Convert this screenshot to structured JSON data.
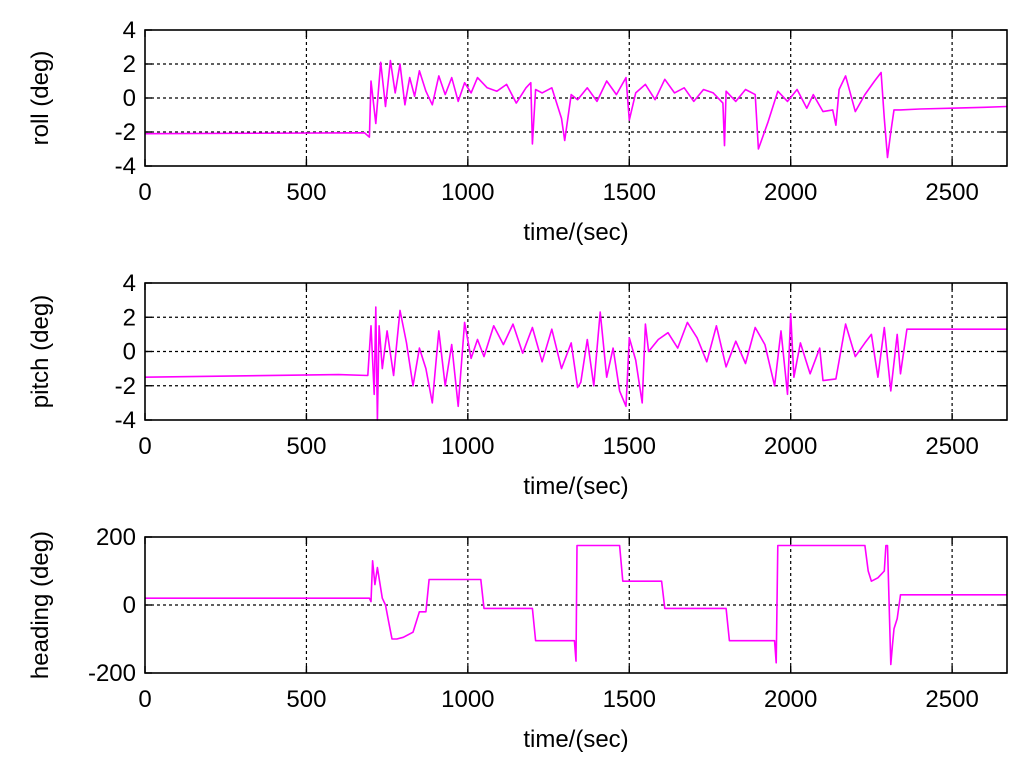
{
  "figure": {
    "background": "#ffffff",
    "trace_color": "#ff00ff"
  },
  "chart_data": [
    {
      "type": "line",
      "xlabel": "time/(sec)",
      "ylabel": "roll (deg)",
      "xlim": [
        0,
        2670
      ],
      "ylim": [
        -4,
        4
      ],
      "xticks": [
        0,
        500,
        1000,
        1500,
        2000,
        2500
      ],
      "yticks": [
        -4,
        -2,
        0,
        2,
        4
      ],
      "grid": true,
      "series": [
        {
          "color": "#ff00ff",
          "x": [
            0,
            680,
            695,
            700,
            715,
            730,
            745,
            760,
            775,
            790,
            805,
            820,
            835,
            850,
            870,
            890,
            910,
            930,
            950,
            970,
            990,
            1010,
            1030,
            1060,
            1090,
            1120,
            1150,
            1180,
            1195,
            1200,
            1210,
            1230,
            1260,
            1290,
            1300,
            1320,
            1340,
            1370,
            1400,
            1430,
            1460,
            1490,
            1500,
            1520,
            1550,
            1580,
            1610,
            1640,
            1670,
            1700,
            1730,
            1760,
            1790,
            1795,
            1800,
            1830,
            1860,
            1890,
            1900,
            1930,
            1960,
            1990,
            2020,
            2050,
            2070,
            2100,
            2130,
            2140,
            2150,
            2170,
            2200,
            2230,
            2260,
            2280,
            2290,
            2300,
            2310,
            2320,
            2340,
            2400,
            2500,
            2600,
            2670
          ],
          "y": [
            -2.1,
            -2.05,
            -2.3,
            1.0,
            -1.5,
            2.1,
            -0.5,
            2.2,
            0.3,
            2.0,
            -0.4,
            1.2,
            0.1,
            1.6,
            0.4,
            -0.4,
            1.3,
            0.2,
            1.2,
            -0.2,
            0.9,
            0.3,
            1.2,
            0.6,
            0.4,
            0.8,
            -0.3,
            0.6,
            0.9,
            -2.7,
            0.5,
            0.3,
            0.6,
            -1.2,
            -2.5,
            0.2,
            -0.1,
            0.6,
            -0.2,
            1.0,
            0.2,
            1.2,
            -1.3,
            0.3,
            0.8,
            -0.1,
            1.1,
            0.3,
            0.6,
            -0.2,
            0.5,
            0.3,
            -0.3,
            -2.8,
            0.4,
            -0.2,
            0.5,
            0.2,
            -3.0,
            -1.4,
            0.4,
            -0.2,
            0.5,
            -0.6,
            0.2,
            -0.8,
            -0.7,
            -1.6,
            0.5,
            1.3,
            -0.8,
            0.2,
            1.0,
            1.5,
            -1.2,
            -3.5,
            -2.0,
            -0.7,
            -0.7,
            -0.65,
            -0.6,
            -0.55,
            -0.5
          ]
        }
      ]
    },
    {
      "type": "line",
      "xlabel": "time/(sec)",
      "ylabel": "pitch (deg)",
      "xlim": [
        0,
        2670
      ],
      "ylim": [
        -4,
        4
      ],
      "xticks": [
        0,
        500,
        1000,
        1500,
        2000,
        2500
      ],
      "yticks": [
        -4,
        -2,
        0,
        2,
        4
      ],
      "grid": true,
      "series": [
        {
          "color": "#ff00ff",
          "x": [
            0,
            600,
            690,
            700,
            710,
            715,
            720,
            725,
            735,
            750,
            770,
            790,
            810,
            830,
            850,
            870,
            890,
            910,
            930,
            950,
            970,
            990,
            1010,
            1030,
            1050,
            1080,
            1110,
            1140,
            1170,
            1200,
            1230,
            1260,
            1290,
            1320,
            1340,
            1350,
            1370,
            1390,
            1410,
            1430,
            1450,
            1470,
            1490,
            1500,
            1520,
            1540,
            1550,
            1560,
            1590,
            1620,
            1650,
            1680,
            1710,
            1740,
            1770,
            1800,
            1830,
            1860,
            1890,
            1920,
            1950,
            1970,
            1990,
            2000,
            2010,
            2030,
            2060,
            2090,
            2100,
            2140,
            2170,
            2200,
            2230,
            2250,
            2270,
            2290,
            2310,
            2330,
            2340,
            2360,
            2670
          ],
          "y": [
            -1.5,
            -1.35,
            -1.4,
            1.5,
            -2.5,
            2.6,
            -4.0,
            1.5,
            -1.0,
            1.2,
            -1.4,
            2.4,
            0.5,
            -2.0,
            0.2,
            -1.0,
            -3.0,
            1.2,
            -2.0,
            0.4,
            -3.2,
            1.7,
            -0.4,
            0.7,
            -0.3,
            1.5,
            0.4,
            1.6,
            -0.1,
            1.4,
            -0.6,
            1.3,
            -1.0,
            0.5,
            -2.1,
            -1.8,
            0.7,
            -2.0,
            2.3,
            -1.5,
            0.2,
            -2.3,
            -3.2,
            0.8,
            -0.5,
            -3.0,
            1.6,
            0.0,
            0.7,
            1.1,
            0.2,
            1.7,
            0.8,
            -0.6,
            1.5,
            -0.9,
            0.6,
            -0.7,
            1.4,
            0.4,
            -2.0,
            1.2,
            -2.5,
            2.2,
            -1.5,
            0.5,
            -1.3,
            0.2,
            -1.7,
            -1.6,
            1.6,
            -0.3,
            0.5,
            1.0,
            -1.5,
            1.4,
            -2.3,
            1.0,
            -1.3,
            1.3,
            1.3
          ]
        }
      ]
    },
    {
      "type": "line",
      "xlabel": "time/(sec)",
      "ylabel": "heading (deg)",
      "xlim": [
        0,
        2670
      ],
      "ylim": [
        -200,
        200
      ],
      "xticks": [
        0,
        500,
        1000,
        1500,
        2000,
        2500
      ],
      "yticks": [
        -200,
        0,
        200
      ],
      "grid": true,
      "series": [
        {
          "color": "#ff00ff",
          "x": [
            0,
            690,
            695,
            700,
            705,
            712,
            720,
            735,
            745,
            755,
            765,
            780,
            800,
            830,
            850,
            870,
            880,
            950,
            1000,
            1040,
            1050,
            1100,
            1150,
            1200,
            1210,
            1250,
            1300,
            1330,
            1335,
            1338,
            1350,
            1400,
            1470,
            1480,
            1550,
            1600,
            1610,
            1700,
            1800,
            1810,
            1900,
            1950,
            1955,
            1960,
            2000,
            2100,
            2230,
            2240,
            2250,
            2270,
            2290,
            2295,
            2300,
            2310,
            2315,
            2320,
            2330,
            2340,
            2400,
            2500,
            2670
          ],
          "y": [
            20,
            20,
            20,
            10,
            130,
            60,
            110,
            20,
            0,
            -50,
            -100,
            -100,
            -95,
            -80,
            -20,
            -20,
            75,
            75,
            75,
            75,
            -10,
            -10,
            -10,
            -10,
            -105,
            -105,
            -105,
            -105,
            -165,
            175,
            175,
            175,
            175,
            70,
            70,
            70,
            -10,
            -10,
            -10,
            -105,
            -105,
            -105,
            -170,
            175,
            175,
            175,
            175,
            100,
            70,
            80,
            100,
            175,
            175,
            -175,
            -120,
            -70,
            -40,
            30,
            30,
            30,
            30
          ]
        }
      ]
    }
  ]
}
